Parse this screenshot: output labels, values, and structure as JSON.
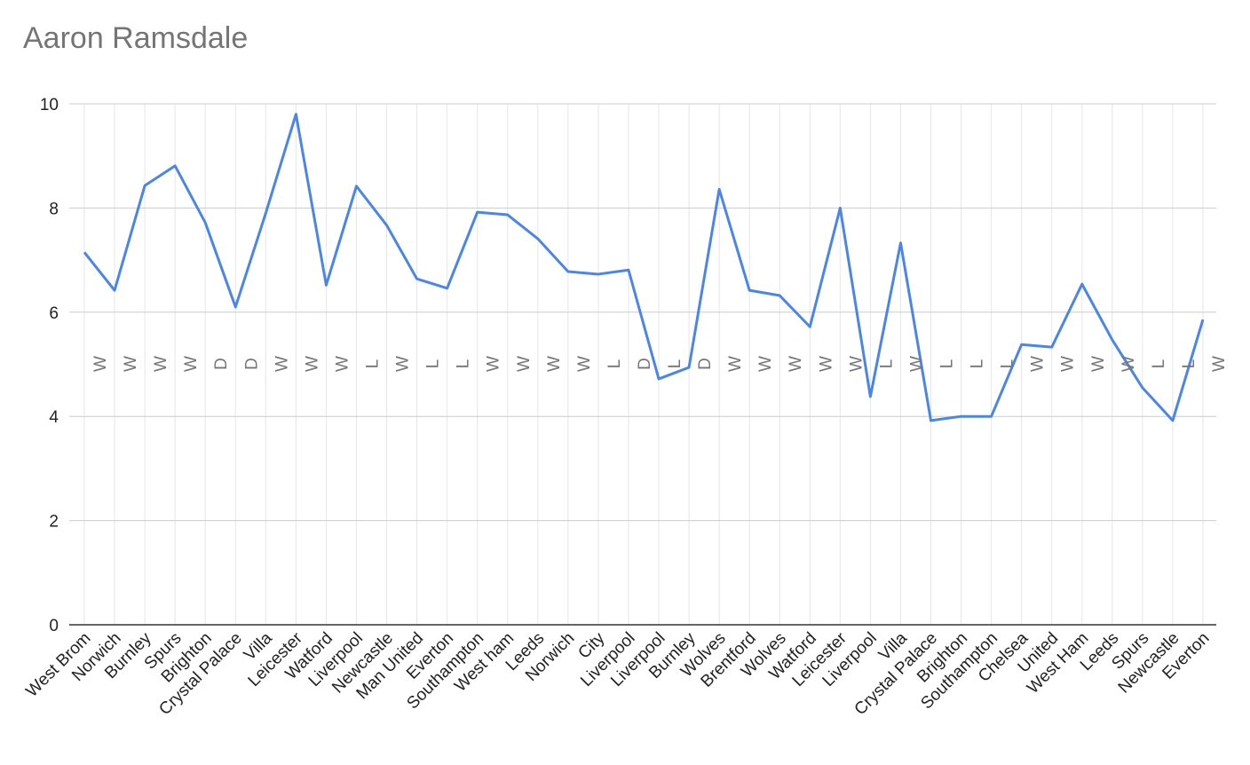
{
  "chart_data": {
    "type": "line",
    "title": "Aaron Ramsdale",
    "categories": [
      "West Brom",
      "Norwich",
      "Burnley",
      "Spurs",
      "Brighton",
      "Crystal Palace",
      "Villa",
      "Leicester",
      "Watford",
      "Liverpool",
      "Newcastle",
      "Man United",
      "Everton",
      "Southampton",
      "West ham",
      "Leeds",
      "Norwich",
      "City",
      "Liverpool",
      "Liverpool",
      "Burnley",
      "Wolves",
      "Brentford",
      "Wolves",
      "Watford",
      "Leicester",
      "Liverpool",
      "Villa",
      "Crystal Palace",
      "Brighton",
      "Southampton",
      "Chelsea",
      "United",
      "West Ham",
      "Leeds",
      "Spurs",
      "Newcastle",
      "Everton"
    ],
    "values": [
      7.15,
      6.42,
      8.43,
      8.81,
      7.72,
      6.1,
      7.9,
      9.8,
      6.52,
      8.42,
      7.67,
      6.64,
      6.46,
      7.92,
      7.87,
      7.41,
      6.78,
      6.73,
      6.81,
      4.72,
      4.94,
      8.36,
      6.42,
      6.32,
      5.72,
      8.0,
      4.38,
      7.33,
      3.92,
      4.0,
      4.0,
      5.38,
      5.33,
      6.54,
      5.47,
      4.55,
      3.92,
      5.86
    ],
    "annotations": [
      "W",
      "W",
      "W",
      "W",
      "D",
      "D",
      "W",
      "W",
      "W",
      "L",
      "W",
      "L",
      "L",
      "W",
      "W",
      "W",
      "W",
      "L",
      "D",
      "L",
      "D",
      "W",
      "W",
      "W",
      "W",
      "W",
      "L",
      "W",
      "L",
      "L",
      "L",
      "W",
      "W",
      "W",
      "W",
      "L",
      "L",
      "W"
    ],
    "color": "#4a86e8",
    "ylim": [
      0,
      10
    ],
    "yticks": [
      0,
      2,
      4,
      6,
      8,
      10
    ],
    "grid": true
  }
}
